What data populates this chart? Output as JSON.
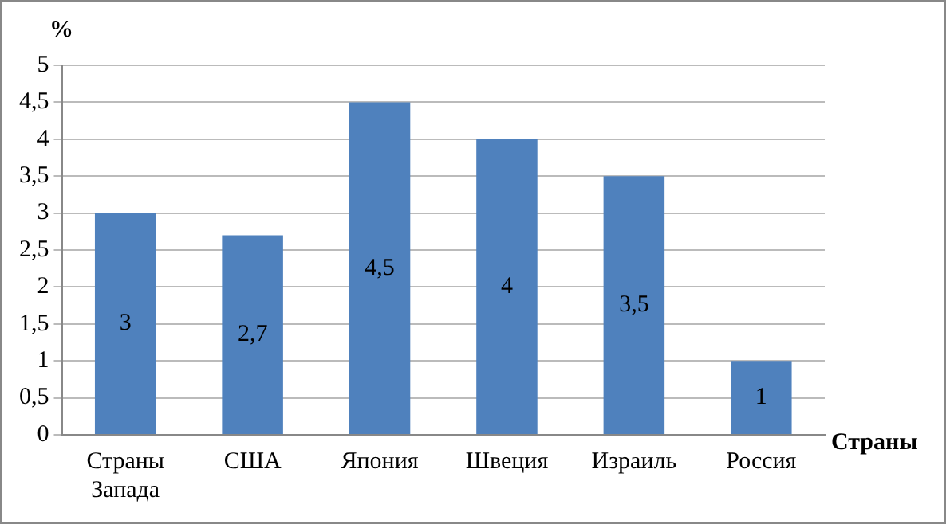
{
  "chart_data": {
    "type": "bar",
    "ylabel": "%",
    "xlabel": "Страны",
    "categories": [
      "Страны Запада",
      "США",
      "Япония",
      "Швеция",
      "Израиль",
      "Россия"
    ],
    "values": [
      3,
      2.7,
      4.5,
      4,
      3.5,
      1
    ],
    "value_labels": [
      "3",
      "2,7",
      "4,5",
      "4",
      "3,5",
      "1"
    ],
    "color": "#4f81bd",
    "ylim": [
      0,
      5
    ],
    "yticks": [
      0,
      {
        "value": 0.5,
        "label": "0,5"
      },
      1,
      {
        "value": 1.5,
        "label": "1,5"
      },
      2,
      {
        "value": 2.5,
        "label": "2,5"
      },
      3,
      {
        "value": 3.5,
        "label": "3,5"
      },
      4,
      {
        "value": 4.5,
        "label": "4,5"
      },
      5
    ],
    "grid": "y",
    "legend": false
  }
}
